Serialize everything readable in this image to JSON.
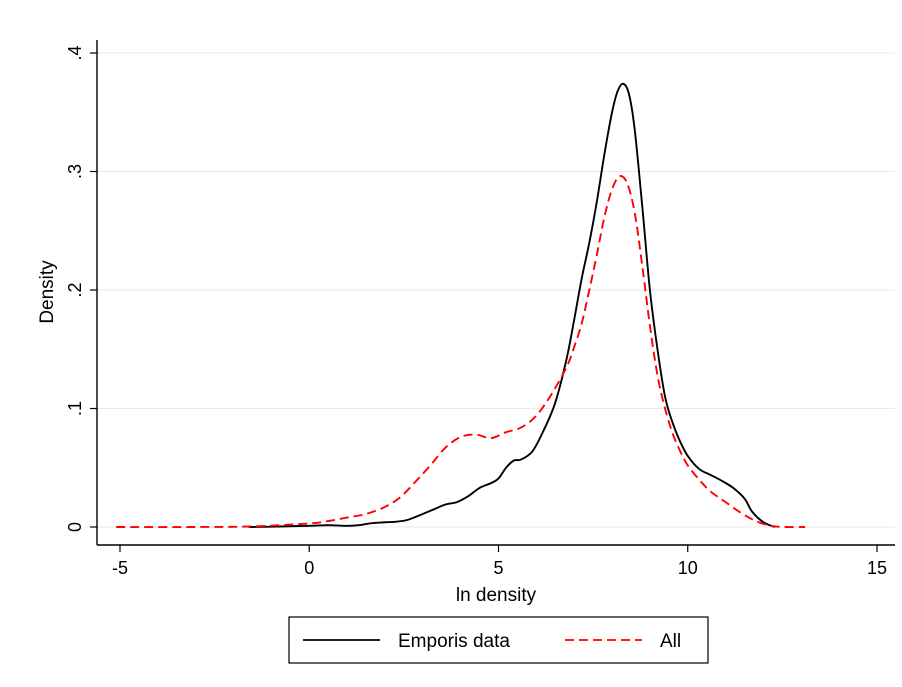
{
  "chart_data": {
    "type": "line",
    "title": "",
    "xlabel": "ln density",
    "ylabel": "Density",
    "xlim": [
      -5,
      15
    ],
    "ylim": [
      0,
      0.4
    ],
    "xticks": [
      -5,
      0,
      5,
      10,
      15
    ],
    "xtick_labels": [
      "-5",
      "0",
      "5",
      "10",
      "15"
    ],
    "yticks": [
      0,
      0.1,
      0.2,
      0.3,
      0.4
    ],
    "ytick_labels": [
      "0",
      ".1",
      ".2",
      ".3",
      ".4"
    ],
    "grid": true,
    "legend_position": "bottom",
    "series": [
      {
        "name": "Emporis data",
        "color": "#000000",
        "style": "solid",
        "x": [
          -1.6,
          -1.0,
          0.0,
          0.5,
          1.0,
          1.3,
          1.6,
          2.0,
          2.3,
          2.6,
          3.0,
          3.3,
          3.6,
          3.9,
          4.2,
          4.5,
          4.8,
          5.0,
          5.2,
          5.4,
          5.6,
          5.9,
          6.2,
          6.5,
          6.8,
          7.0,
          7.2,
          7.4,
          7.6,
          7.8,
          8.0,
          8.15,
          8.3,
          8.45,
          8.6,
          8.8,
          9.0,
          9.2,
          9.4,
          9.6,
          9.8,
          10.0,
          10.3,
          10.6,
          10.9,
          11.2,
          11.5,
          11.7,
          12.0,
          12.3
        ],
        "y": [
          0,
          0.0003,
          0.001,
          0.0015,
          0.001,
          0.0015,
          0.003,
          0.004,
          0.0045,
          0.006,
          0.011,
          0.015,
          0.019,
          0.021,
          0.026,
          0.033,
          0.037,
          0.041,
          0.05,
          0.056,
          0.057,
          0.064,
          0.082,
          0.105,
          0.142,
          0.175,
          0.21,
          0.24,
          0.275,
          0.315,
          0.35,
          0.368,
          0.374,
          0.365,
          0.335,
          0.27,
          0.2,
          0.15,
          0.11,
          0.088,
          0.072,
          0.06,
          0.049,
          0.044,
          0.039,
          0.033,
          0.024,
          0.013,
          0.004,
          0.0
        ]
      },
      {
        "name": "All",
        "color": "#ff0000",
        "style": "dashed",
        "x": [
          -5.1,
          -3.0,
          -1.5,
          0.0,
          0.5,
          1.0,
          1.5,
          2.0,
          2.4,
          2.8,
          3.2,
          3.6,
          4.0,
          4.4,
          4.8,
          5.2,
          5.6,
          6.0,
          6.4,
          6.8,
          7.0,
          7.2,
          7.4,
          7.6,
          7.8,
          8.0,
          8.2,
          8.4,
          8.6,
          8.8,
          9.0,
          9.2,
          9.4,
          9.6,
          9.8,
          10.0,
          10.3,
          10.6,
          11.0,
          11.4,
          11.8,
          12.2,
          12.6,
          13.1
        ],
        "y": [
          0,
          0,
          0.0005,
          0.003,
          0.005,
          0.008,
          0.011,
          0.017,
          0.025,
          0.038,
          0.052,
          0.067,
          0.076,
          0.078,
          0.075,
          0.08,
          0.084,
          0.094,
          0.112,
          0.135,
          0.152,
          0.172,
          0.2,
          0.23,
          0.262,
          0.285,
          0.296,
          0.29,
          0.265,
          0.22,
          0.17,
          0.128,
          0.1,
          0.079,
          0.064,
          0.052,
          0.04,
          0.03,
          0.021,
          0.012,
          0.005,
          0.001,
          0.0,
          0.0
        ]
      }
    ]
  }
}
